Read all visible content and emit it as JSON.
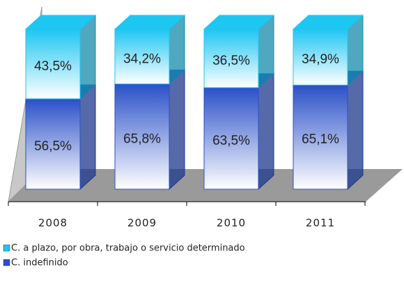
{
  "chart_data": {
    "type": "bar",
    "stacked": true,
    "categories": [
      "2008",
      "2009",
      "2010",
      "2011"
    ],
    "ylim": [
      0,
      100
    ],
    "series": [
      {
        "name": "C. indefinido",
        "color": "#2a50c8",
        "values": [
          56.5,
          65.8,
          63.5,
          65.1
        ],
        "value_labels": [
          "56,5%",
          "65,8%",
          "63,5%",
          "65,1%"
        ]
      },
      {
        "name": "C. a plazo, por obra, trabajo o servicio determinado",
        "color": "#1ec6f2",
        "values": [
          43.5,
          34.2,
          36.5,
          34.9
        ],
        "value_labels": [
          "43,5%",
          "34,2%",
          "36,5%",
          "34,9%"
        ]
      }
    ]
  }
}
